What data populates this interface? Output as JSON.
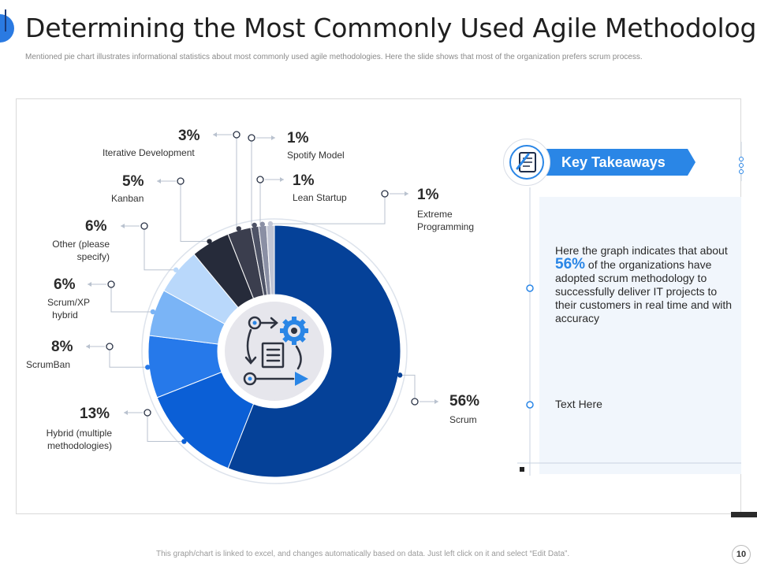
{
  "header": {
    "title": "Determining the Most Commonly Used Agile Methodologies",
    "subtitle": "Mentioned pie chart illustrates informational statistics about most commonly used agile methodologies. Here the slide shows that most of the organization prefers scrum process."
  },
  "chart_data": {
    "type": "pie",
    "categories": [
      "Scrum",
      "Hybrid (multiple methodologies)",
      "ScrumBan",
      "Scrum/XP hybrid",
      "Other (please specify)",
      "Kanban",
      "Iterative  Development",
      "Spotify Model",
      "Lean Startup",
      "Extreme Programming"
    ],
    "values": [
      56,
      13,
      8,
      6,
      6,
      5,
      3,
      1,
      1,
      1
    ],
    "value_labels": [
      "56%",
      "13%",
      "8%",
      "6%",
      "6%",
      "5%",
      "3%",
      "1%",
      "1%",
      "1%"
    ],
    "colors": [
      "#054198",
      "#0b5fd6",
      "#2679ea",
      "#7ab4f6",
      "#b9d8fb",
      "#262b3a",
      "#3b3e4e",
      "#4e5366",
      "#8a8fa4",
      "#c1c5d4"
    ],
    "inner_radius_ratio": 0.45
  },
  "takeaways": {
    "title": "Key Takeaways",
    "text_before": "Here the graph indicates that about",
    "highlight": "56%",
    "text_after": "of the organizations have adopted scrum methodology to successfully deliver IT projects to their customers in real time and with accuracy",
    "second_point": "Text Here"
  },
  "footer": {
    "note": "This graph/chart is linked to excel, and changes automatically based on data.  Just left click on it and select “Edit Data”.",
    "page_number": "10"
  }
}
